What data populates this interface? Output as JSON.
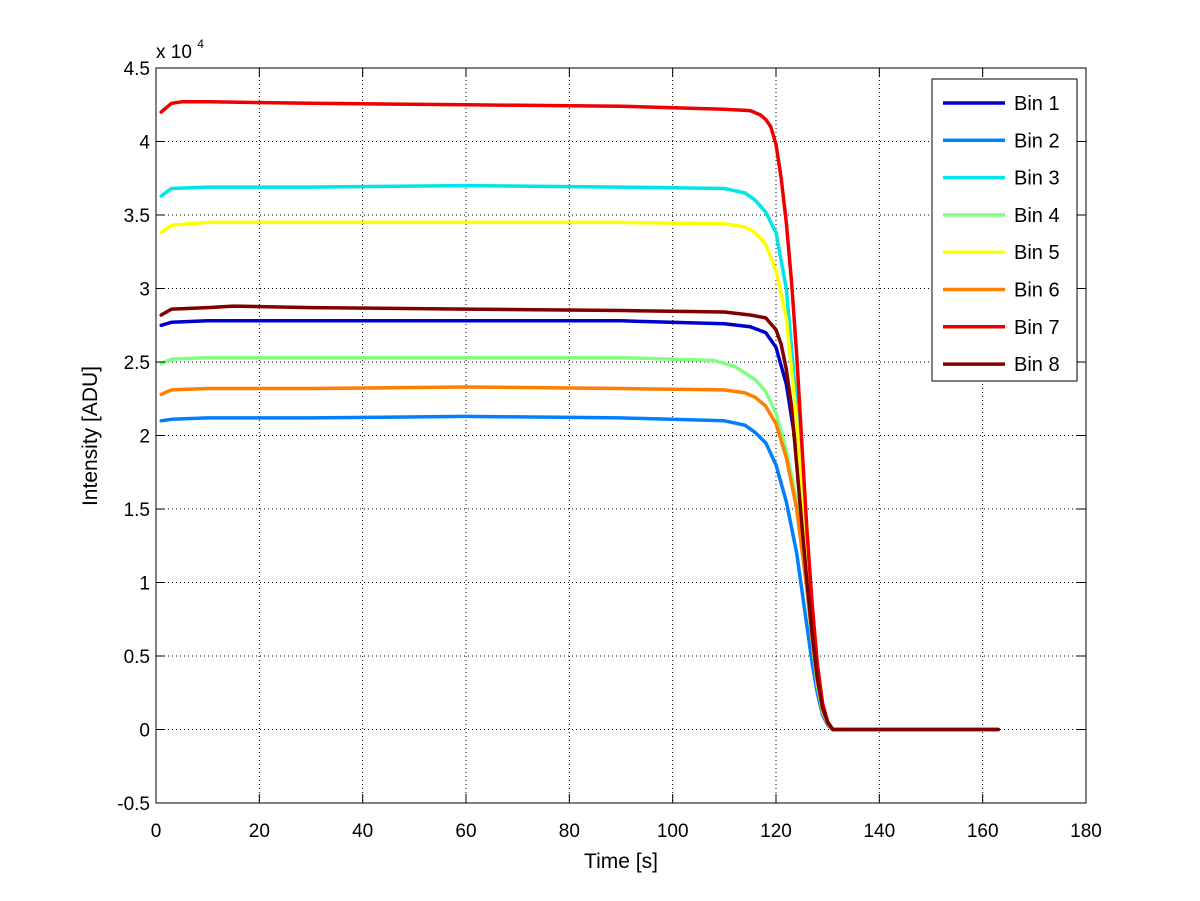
{
  "chart_data": {
    "type": "line",
    "title": "",
    "xlabel": "Time [s]",
    "ylabel": "Intensity [ADU]",
    "y_multiplier": {
      "base": "x 10",
      "exponent": "4"
    },
    "xlim": [
      0,
      180
    ],
    "ylim": [
      -0.5,
      4.5
    ],
    "x_ticks": [
      0,
      20,
      40,
      60,
      80,
      100,
      120,
      140,
      160,
      180
    ],
    "y_ticks": [
      -0.5,
      0,
      0.5,
      1,
      1.5,
      2,
      2.5,
      3,
      3.5,
      4,
      4.5
    ],
    "x_tick_labels": [
      "0",
      "20",
      "40",
      "60",
      "80",
      "100",
      "120",
      "140",
      "160",
      "180"
    ],
    "y_tick_labels": [
      "-0.5",
      "0",
      "0.5",
      "1",
      "1.5",
      "2",
      "2.5",
      "3",
      "3.5",
      "4",
      "4.5"
    ],
    "grid": true,
    "legend_position": "top-right",
    "series": [
      {
        "name": "Bin 1",
        "color": "#0000cc",
        "x": [
          1,
          3,
          10,
          30,
          60,
          90,
          110,
          115,
          118,
          120,
          122,
          124,
          126,
          127,
          128,
          129,
          130,
          131,
          135,
          163
        ],
        "y": [
          2.75,
          2.77,
          2.78,
          2.78,
          2.78,
          2.78,
          2.76,
          2.74,
          2.7,
          2.6,
          2.35,
          1.9,
          1.1,
          0.7,
          0.38,
          0.15,
          0.05,
          0.0,
          0.0,
          0.0
        ]
      },
      {
        "name": "Bin 2",
        "color": "#0080ff",
        "x": [
          1,
          3,
          10,
          30,
          60,
          90,
          110,
          114,
          116,
          118,
          120,
          122,
          124,
          126,
          127,
          128,
          129,
          130,
          131,
          135,
          163
        ],
        "y": [
          2.1,
          2.11,
          2.12,
          2.12,
          2.13,
          2.12,
          2.1,
          2.07,
          2.02,
          1.95,
          1.8,
          1.55,
          1.2,
          0.7,
          0.45,
          0.25,
          0.1,
          0.03,
          0.0,
          0.0,
          0.0
        ]
      },
      {
        "name": "Bin 3",
        "color": "#00e5e5",
        "x": [
          1,
          3,
          10,
          30,
          60,
          90,
          110,
          114,
          116,
          118,
          120,
          122,
          124,
          126,
          127,
          128,
          129,
          130,
          131,
          135,
          163
        ],
        "y": [
          3.63,
          3.68,
          3.69,
          3.69,
          3.7,
          3.69,
          3.68,
          3.65,
          3.6,
          3.52,
          3.38,
          3.0,
          2.2,
          1.2,
          0.75,
          0.4,
          0.15,
          0.05,
          0.0,
          0.0,
          0.0
        ]
      },
      {
        "name": "Bin 4",
        "color": "#80ff80",
        "x": [
          1,
          3,
          10,
          30,
          60,
          90,
          108,
          112,
          116,
          118,
          120,
          122,
          124,
          126,
          127,
          128,
          129,
          130,
          131,
          135,
          163
        ],
        "y": [
          2.49,
          2.52,
          2.53,
          2.53,
          2.53,
          2.53,
          2.51,
          2.47,
          2.38,
          2.3,
          2.15,
          1.9,
          1.55,
          0.95,
          0.6,
          0.3,
          0.12,
          0.04,
          0.0,
          0.0,
          0.0
        ]
      },
      {
        "name": "Bin 5",
        "color": "#ffff00",
        "x": [
          1,
          3,
          10,
          30,
          60,
          90,
          110,
          114,
          116,
          118,
          120,
          122,
          124,
          126,
          127,
          128,
          129,
          130,
          131,
          135,
          163
        ],
        "y": [
          3.38,
          3.43,
          3.45,
          3.45,
          3.45,
          3.45,
          3.44,
          3.42,
          3.38,
          3.3,
          3.12,
          2.8,
          2.1,
          1.15,
          0.7,
          0.38,
          0.15,
          0.05,
          0.0,
          0.0,
          0.0
        ]
      },
      {
        "name": "Bin 6",
        "color": "#ff8000",
        "x": [
          1,
          3,
          10,
          30,
          60,
          90,
          110,
          114,
          116,
          118,
          120,
          122,
          124,
          126,
          127,
          128,
          129,
          130,
          131,
          135,
          163
        ],
        "y": [
          2.28,
          2.31,
          2.32,
          2.32,
          2.33,
          2.32,
          2.31,
          2.29,
          2.26,
          2.2,
          2.08,
          1.85,
          1.5,
          0.95,
          0.62,
          0.33,
          0.13,
          0.04,
          0.0,
          0.0,
          0.0
        ]
      },
      {
        "name": "Bin 7",
        "color": "#ee0000",
        "x": [
          1,
          3,
          5,
          10,
          30,
          60,
          90,
          110,
          115,
          117,
          118,
          119,
          120,
          121,
          122,
          123,
          124,
          125,
          126,
          127,
          128,
          129,
          130,
          131,
          135,
          163
        ],
        "y": [
          4.2,
          4.26,
          4.27,
          4.27,
          4.26,
          4.25,
          4.24,
          4.22,
          4.21,
          4.18,
          4.15,
          4.1,
          3.98,
          3.75,
          3.45,
          3.05,
          2.55,
          1.95,
          1.35,
          0.85,
          0.45,
          0.18,
          0.05,
          0.0,
          0.0,
          0.0
        ]
      },
      {
        "name": "Bin 8",
        "color": "#800000",
        "x": [
          1,
          3,
          10,
          15,
          30,
          60,
          90,
          110,
          115,
          118,
          120,
          121,
          122,
          123,
          124,
          125,
          126,
          127,
          128,
          129,
          130,
          131,
          135,
          163
        ],
        "y": [
          2.82,
          2.86,
          2.87,
          2.88,
          2.87,
          2.86,
          2.85,
          2.84,
          2.82,
          2.8,
          2.72,
          2.62,
          2.45,
          2.2,
          1.8,
          1.4,
          1.0,
          0.65,
          0.35,
          0.15,
          0.05,
          0.0,
          0.0,
          0.0
        ]
      }
    ]
  }
}
